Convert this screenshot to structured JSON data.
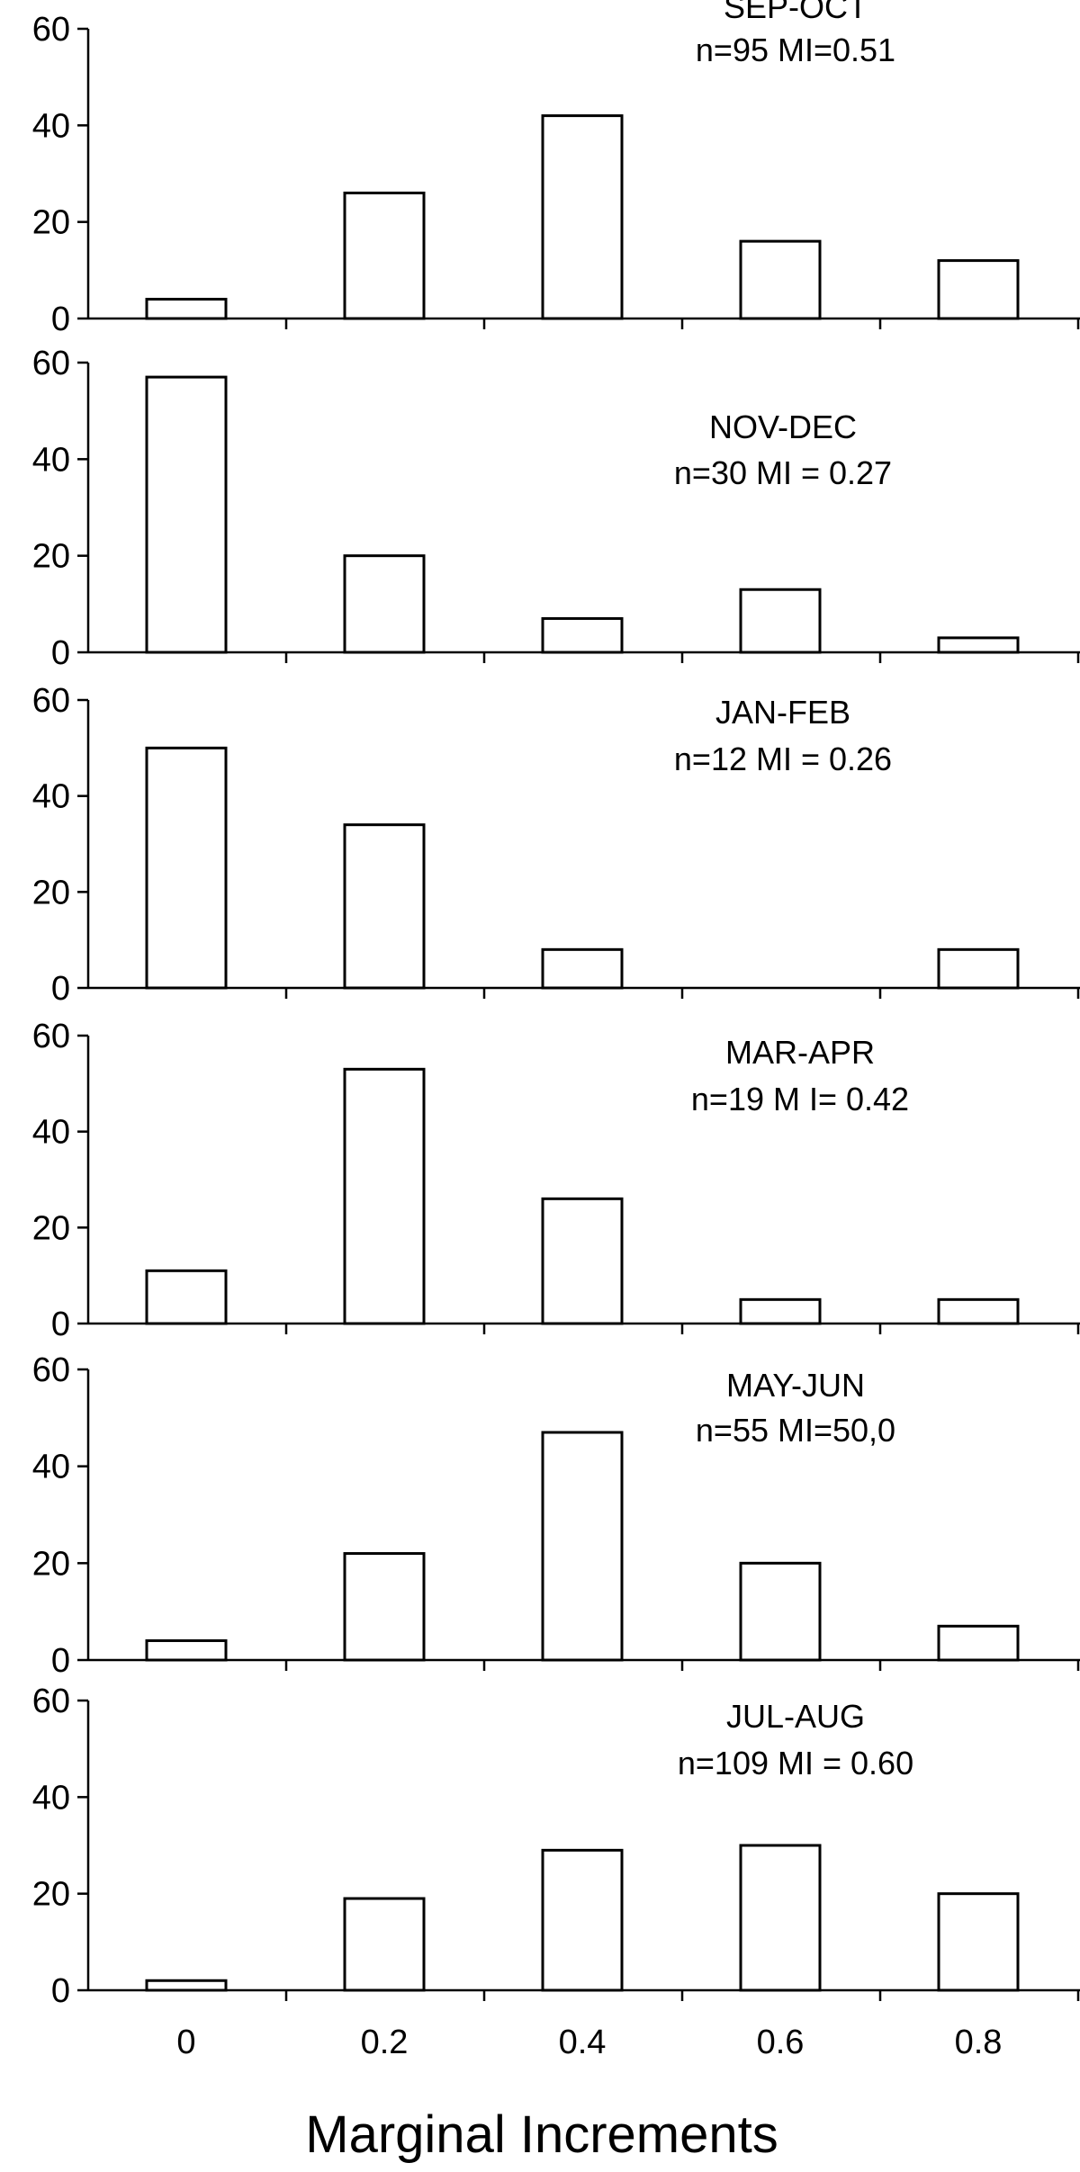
{
  "chart_data": {
    "type": "bar",
    "xlabel": "Marginal Increments",
    "categories": [
      "0",
      "0.2",
      "0.4",
      "0.6",
      "0.8"
    ],
    "ylim": [
      0,
      60
    ],
    "yticks": [
      0,
      20,
      40,
      60
    ],
    "grid": false,
    "panels": [
      {
        "label": "SEP-OCT",
        "stats": "n=95  MI=0.51",
        "values": [
          4,
          26,
          42,
          16,
          12
        ]
      },
      {
        "label": "NOV-DEC",
        "stats": "n=30  MI = 0.27",
        "values": [
          57,
          20,
          7,
          13,
          3
        ]
      },
      {
        "label": "JAN-FEB",
        "stats": "n=12  MI = 0.26",
        "values": [
          50,
          34,
          8,
          0,
          8
        ]
      },
      {
        "label": "MAR-APR",
        "stats": "n=19  M I= 0.42",
        "values": [
          11,
          53,
          26,
          5,
          5
        ]
      },
      {
        "label": "MAY-JUN",
        "stats": "n=55 MI=50,0",
        "values": [
          4,
          22,
          47,
          20,
          7
        ]
      },
      {
        "label": "JUL-AUG",
        "stats": "n=109   MI = 0.60",
        "values": [
          2,
          19,
          29,
          30,
          20
        ]
      }
    ]
  }
}
